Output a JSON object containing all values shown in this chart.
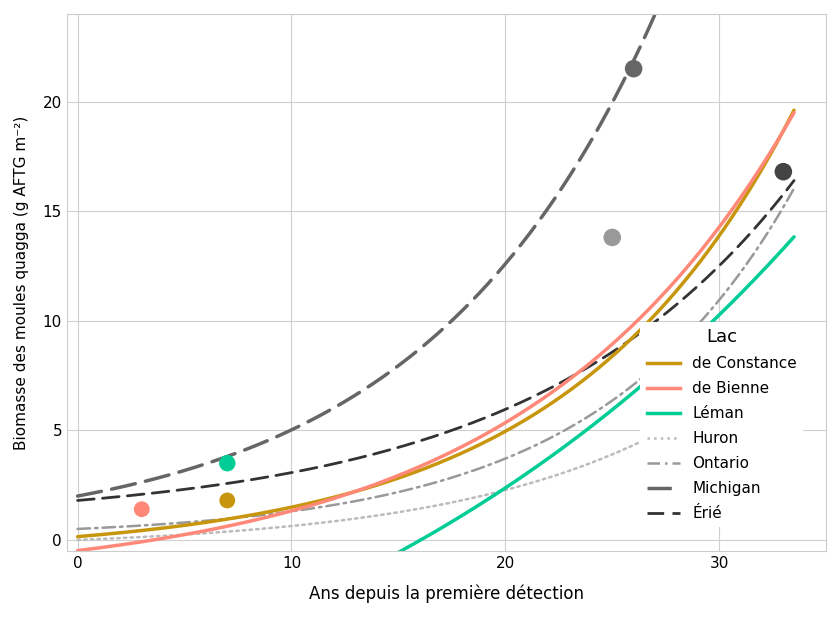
{
  "title": "",
  "xlabel": "Ans depuis la première détection",
  "ylabel": "Biomasse des moules quagga (g AFTG m⁻²)",
  "xlim": [
    -0.5,
    35
  ],
  "ylim": [
    -0.5,
    24
  ],
  "xticks": [
    0,
    10,
    20,
    30
  ],
  "yticks": [
    0,
    5,
    10,
    15,
    20
  ],
  "background_color": "#ffffff",
  "grid_color": "#d0d0d0",
  "curve_params": {
    "Huron": {
      "a": 0.22,
      "b": 2.05,
      "color": "#bbbbbb",
      "ls": "dotted",
      "lw": 1.8,
      "pt_x": null,
      "pt_y": null,
      "pt_c": null
    },
    "Ontario": {
      "a": 0.28,
      "b": 2.05,
      "color": "#999999",
      "ls": "dashdot",
      "lw": 1.8,
      "pt_x": 25.0,
      "pt_y": 13.8,
      "pt_c": "#999999"
    },
    "Michigan": {
      "a": 0.58,
      "b": 2.05,
      "color": "#666666",
      "ls": "dashed",
      "lw": 2.5,
      "pt_x": 26.0,
      "pt_y": 21.5,
      "pt_c": "#666666"
    },
    "Erié": {
      "a": 0.38,
      "b": 2.1,
      "color": "#333333",
      "ls": "dashed",
      "lw": 1.8,
      "pt_x": 33.0,
      "pt_y": 16.8,
      "pt_c": "#444444"
    },
    "de Constance": {
      "a": 0.2,
      "b": 2.15,
      "color": "#C8960C",
      "ls": "solid",
      "lw": 2.5,
      "pt_x": 7.0,
      "pt_y": 1.8,
      "pt_c": "#C8960C"
    },
    "de Bienne": {
      "a": 0.25,
      "b": 2.1,
      "color": "#FF8878",
      "ls": "solid",
      "lw": 2.5,
      "pt_x": 3.0,
      "pt_y": 1.4,
      "pt_c": "#FF8878"
    },
    "Léman": {
      "a": 0.3,
      "b": 2.08,
      "color": "#00CC96",
      "ls": "solid",
      "lw": 2.5,
      "pt_x": 7.0,
      "pt_y": 3.5,
      "pt_c": "#00CC96"
    }
  },
  "legend_title": "Lac",
  "legend_order": [
    "de Constance",
    "de Bienne",
    "Léman",
    "Huron",
    "Ontario",
    "Michigan",
    "Érié"
  ],
  "legend_labels": [
    "de Constance",
    "de Bienne",
    "Léman",
    "Huron",
    "Ontario",
    "Michigan",
    "Érié"
  ],
  "legend_colors": [
    "#C8960C",
    "#FF8878",
    "#00CC96",
    "#bbbbbb",
    "#999999",
    "#666666",
    "#333333"
  ],
  "legend_styles": [
    "solid",
    "solid",
    "solid",
    "dotted",
    "dashdot",
    "dashed",
    "dashed"
  ],
  "legend_widths": [
    2.5,
    2.5,
    2.5,
    1.8,
    1.8,
    2.5,
    1.8
  ]
}
